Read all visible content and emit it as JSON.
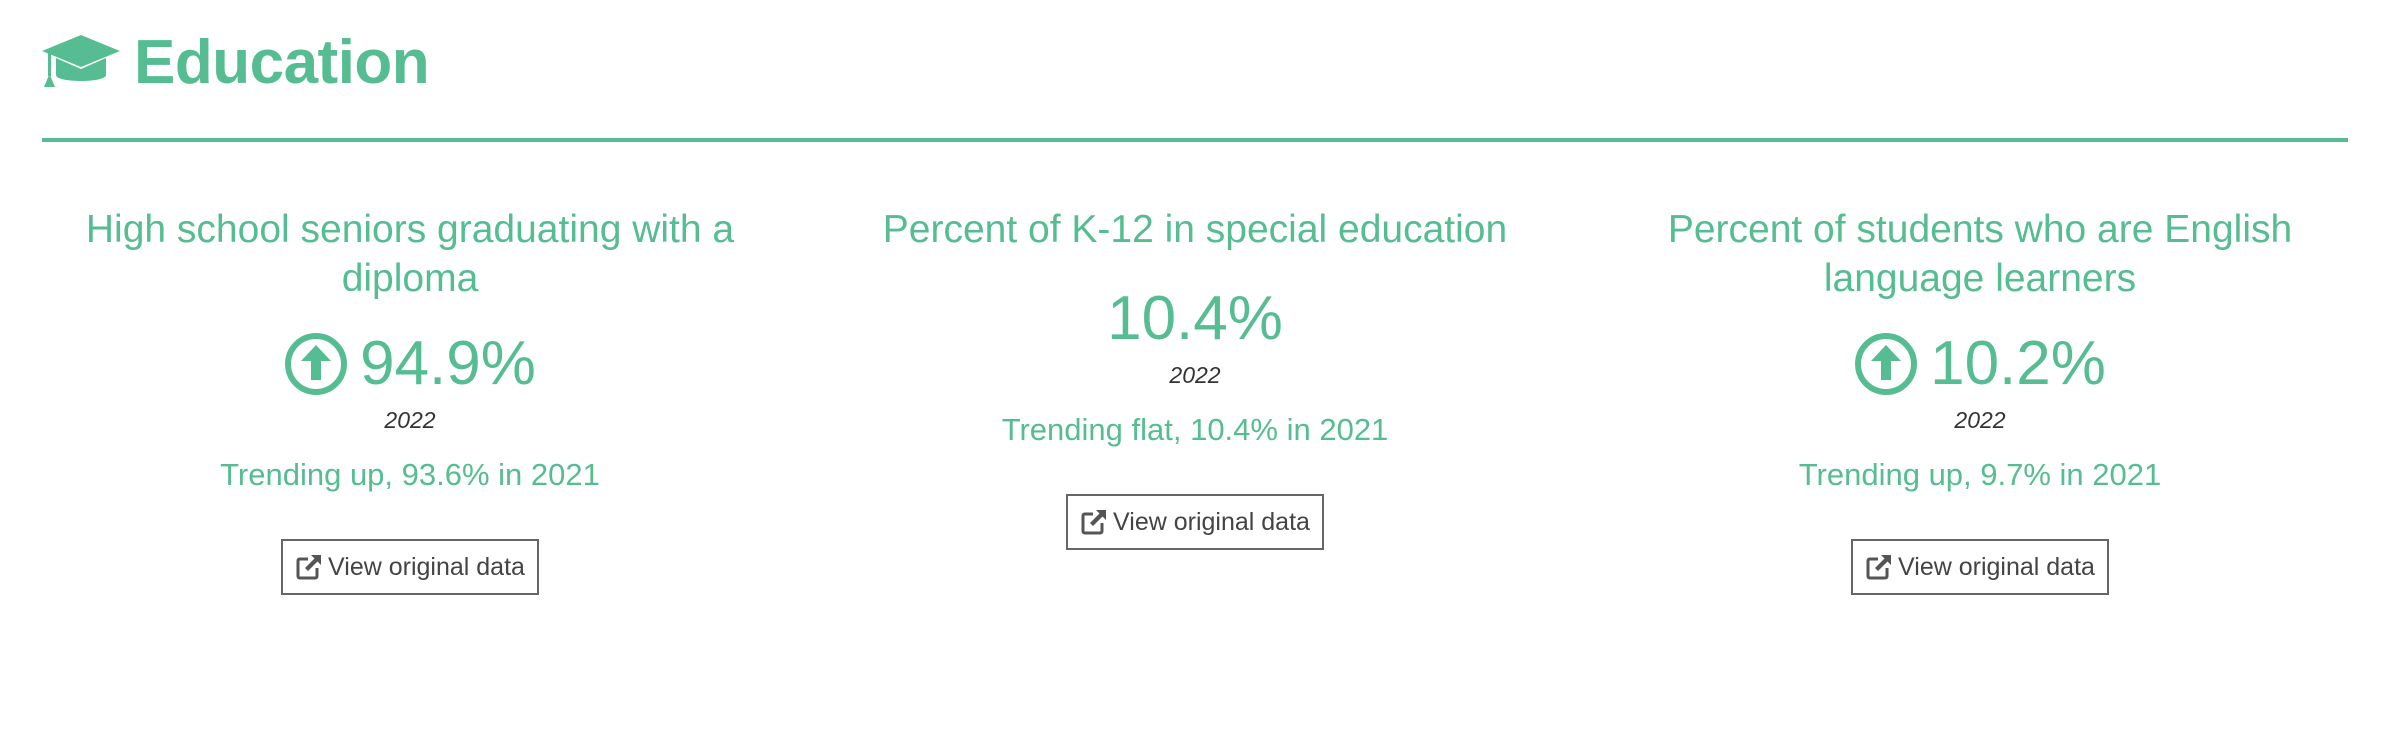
{
  "section": {
    "title": "Education",
    "icon": "graduation-cap-icon",
    "accent_color": "#55bd91"
  },
  "metrics": [
    {
      "title": "High school seniors graduating with a diploma",
      "value": "94.9%",
      "year": "2022",
      "trend_icon": "arrow-circle-up-icon",
      "trend_text": "Trending up, 93.6% in 2021",
      "button_label": "View original data",
      "button_icon": "external-link-icon"
    },
    {
      "title": "Percent of K-12 in special education",
      "value": "10.4%",
      "year": "2022",
      "trend_icon": "",
      "trend_text": "Trending flat, 10.4% in 2021",
      "button_label": "View original data",
      "button_icon": "external-link-icon"
    },
    {
      "title": "Percent of students who are English language learners",
      "value": "10.2%",
      "year": "2022",
      "trend_icon": "arrow-circle-up-icon",
      "trend_text": "Trending up, 9.7% in 2021",
      "button_label": "View original data",
      "button_icon": "external-link-icon"
    }
  ]
}
